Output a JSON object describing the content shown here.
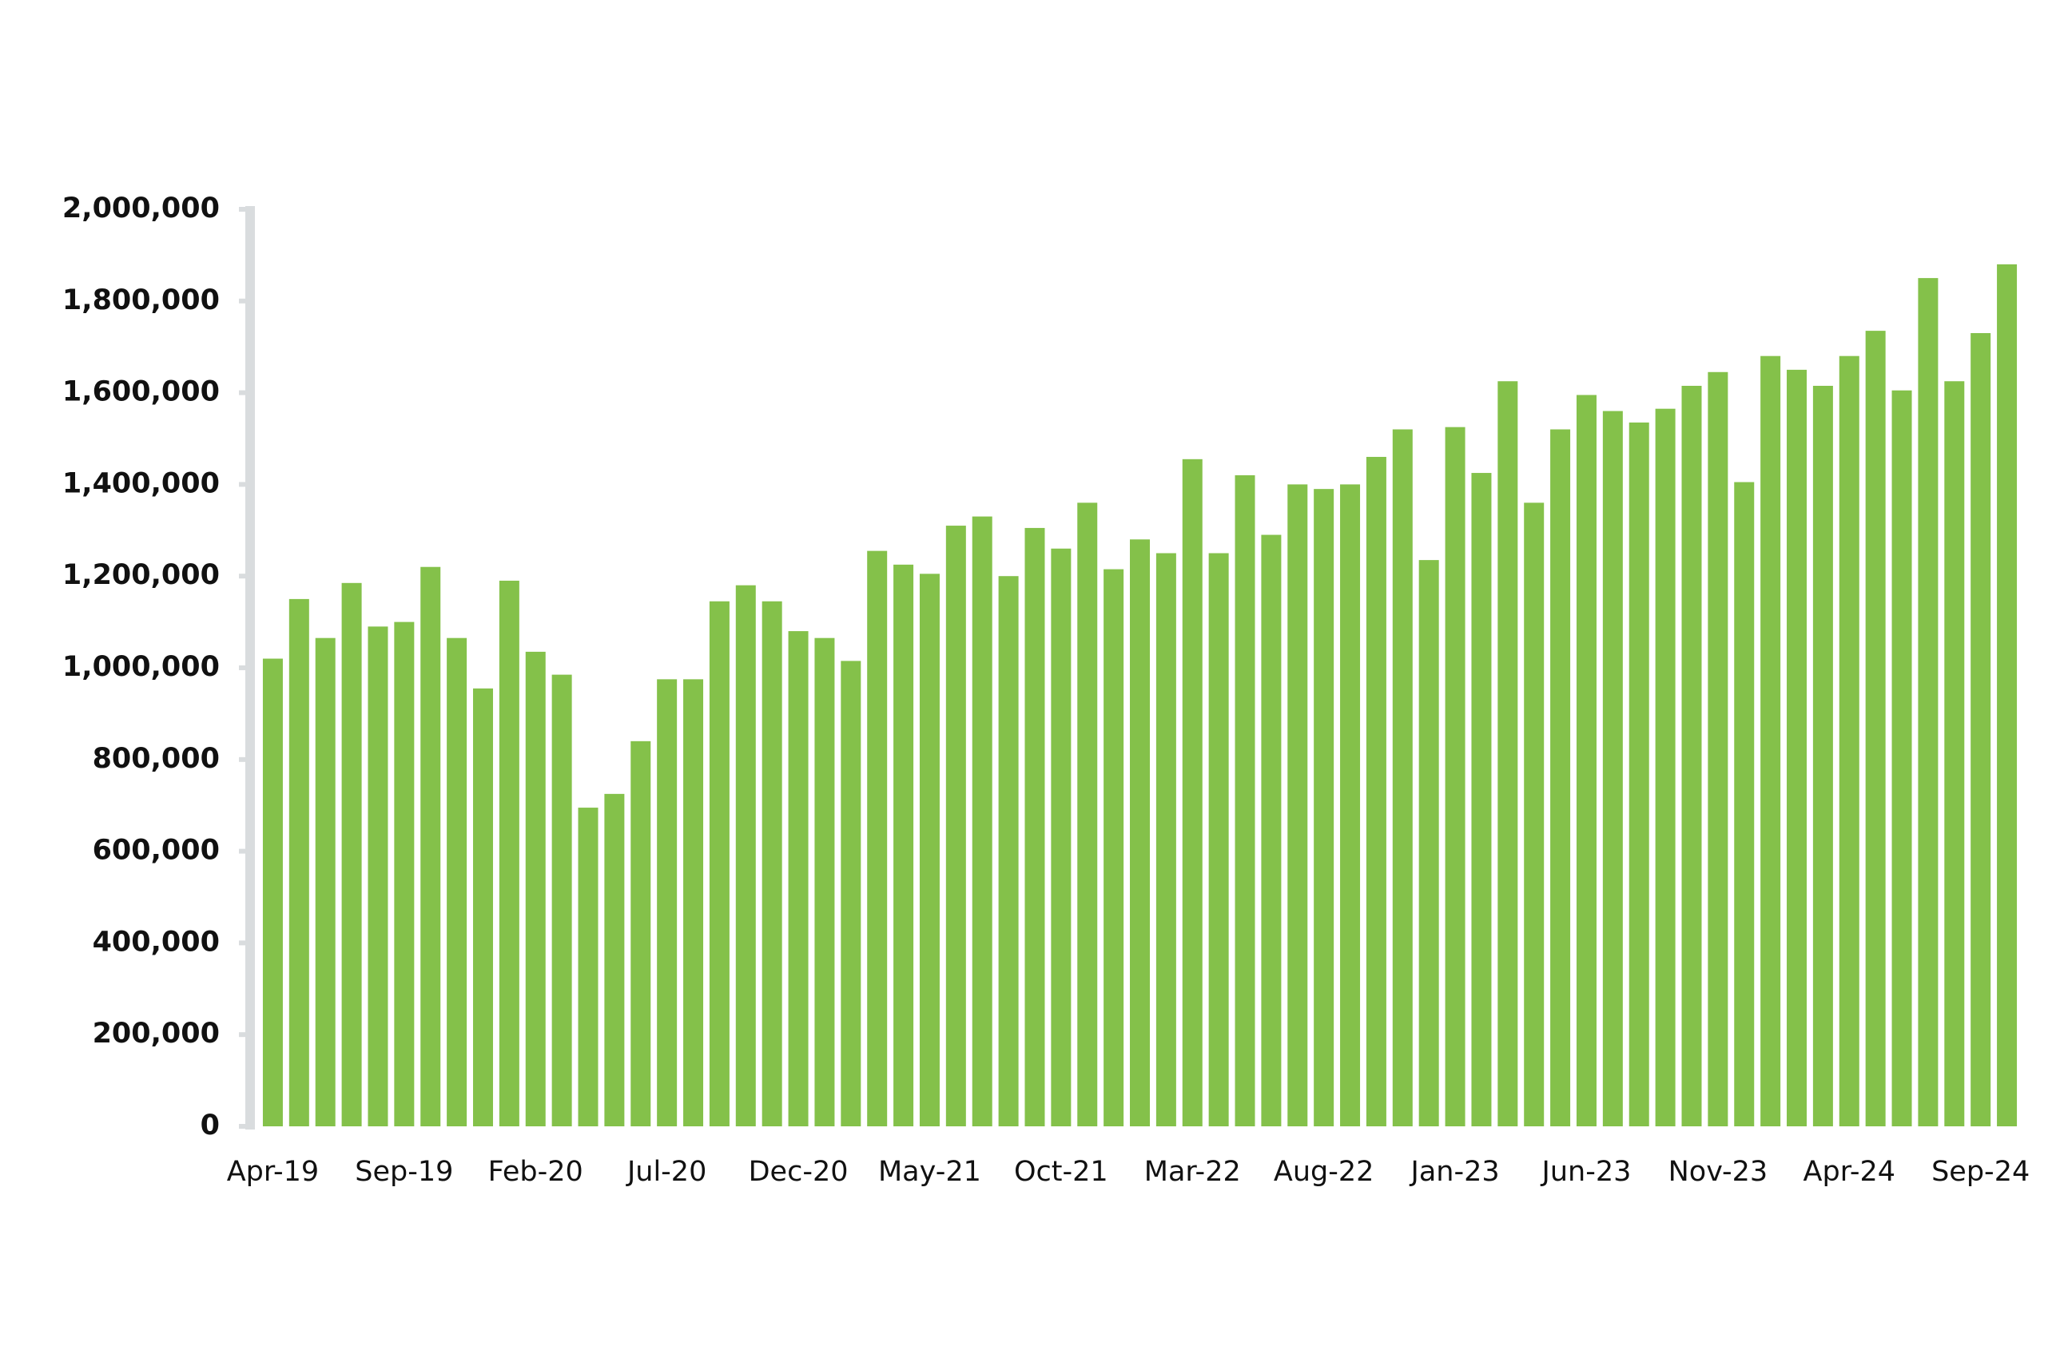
{
  "chart_data": {
    "type": "bar",
    "title": "",
    "xlabel": "",
    "ylabel": "",
    "ylim": [
      0,
      2000000
    ],
    "yticks": [
      0,
      200000,
      400000,
      600000,
      800000,
      1000000,
      1200000,
      1400000,
      1600000,
      1800000,
      2000000
    ],
    "ytick_labels": [
      "0",
      "200,000",
      "400,000",
      "600,000",
      "800,000",
      "1,000,000",
      "1,200,000",
      "1,400,000",
      "1,600,000",
      "1,800,000",
      "2,000,000"
    ],
    "grid": false,
    "legend": "none",
    "colors": {
      "bar": "#84c14a",
      "axis": "#d9dcde",
      "text": "#111111"
    },
    "categories": [
      "Apr-19",
      "May-19",
      "Jun-19",
      "Jul-19",
      "Aug-19",
      "Sep-19",
      "Oct-19",
      "Nov-19",
      "Dec-19",
      "Jan-20",
      "Feb-20",
      "Mar-20",
      "Apr-20",
      "May-20",
      "Jun-20",
      "Jul-20",
      "Aug-20",
      "Sep-20",
      "Oct-20",
      "Nov-20",
      "Dec-20",
      "Jan-21",
      "Feb-21",
      "Mar-21",
      "Apr-21",
      "May-21",
      "Jun-21",
      "Jul-21",
      "Aug-21",
      "Sep-21",
      "Oct-21",
      "Nov-21",
      "Dec-21",
      "Jan-22",
      "Feb-22",
      "Mar-22",
      "Apr-22",
      "May-22",
      "Jun-22",
      "Jul-22",
      "Aug-22",
      "Sep-22",
      "Oct-22",
      "Nov-22",
      "Dec-22",
      "Jan-23",
      "Feb-23",
      "Mar-23",
      "Apr-23",
      "May-23",
      "Jun-23",
      "Jul-23",
      "Aug-23",
      "Sep-23",
      "Oct-23",
      "Nov-23",
      "Dec-23",
      "Jan-24",
      "Feb-24",
      "Mar-24",
      "Apr-24",
      "May-24",
      "Jun-24",
      "Jul-24",
      "Aug-24",
      "Sep-24",
      "Oct-24"
    ],
    "xtick_labels": [
      "Apr-19",
      "Sep-19",
      "Feb-20",
      "Jul-20",
      "Dec-20",
      "May-21",
      "Oct-21",
      "Mar-22",
      "Aug-22",
      "Jan-23",
      "Jun-23",
      "Nov-23",
      "Apr-24",
      "Sep-24"
    ],
    "values": [
      1020000,
      1150000,
      1065000,
      1185000,
      1090000,
      1100000,
      1220000,
      1065000,
      955000,
      1190000,
      1035000,
      985000,
      695000,
      725000,
      840000,
      975000,
      975000,
      1145000,
      1180000,
      1145000,
      1080000,
      1065000,
      1015000,
      1255000,
      1225000,
      1205000,
      1310000,
      1330000,
      1200000,
      1305000,
      1260000,
      1360000,
      1215000,
      1280000,
      1250000,
      1455000,
      1250000,
      1420000,
      1290000,
      1400000,
      1390000,
      1400000,
      1460000,
      1520000,
      1235000,
      1525000,
      1425000,
      1625000,
      1360000,
      1520000,
      1595000,
      1560000,
      1535000,
      1565000,
      1615000,
      1645000,
      1405000,
      1680000,
      1650000,
      1615000,
      1680000,
      1735000,
      1605000,
      1850000,
      1625000,
      1730000,
      1880000
    ]
  }
}
